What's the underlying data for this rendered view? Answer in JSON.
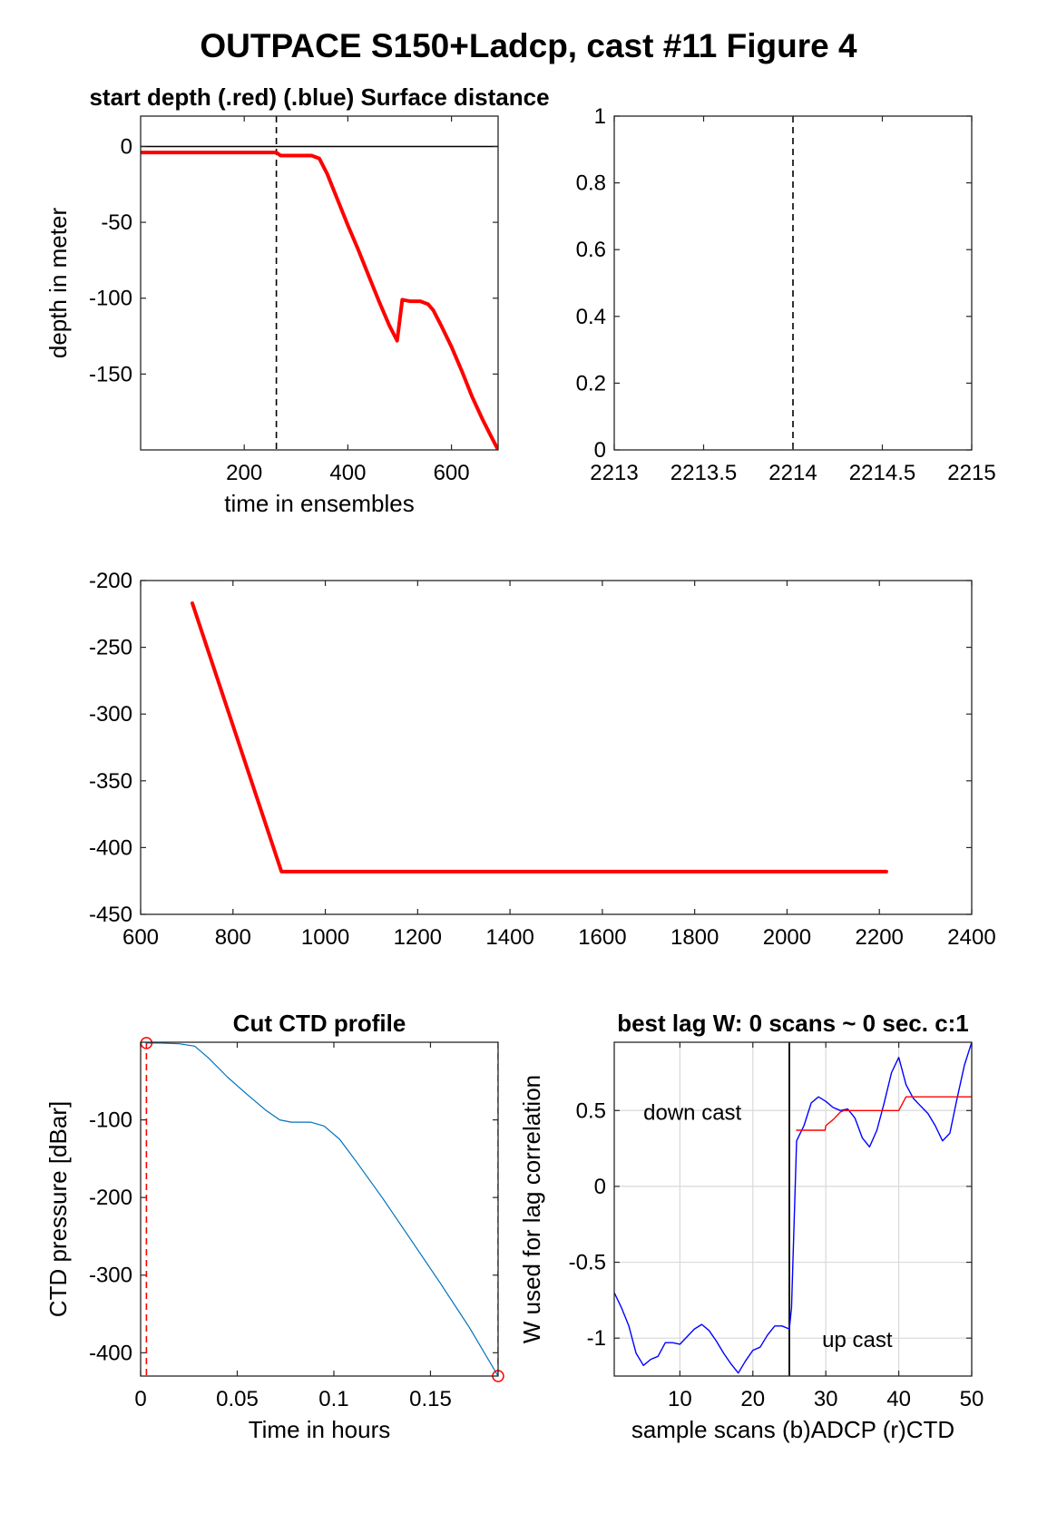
{
  "figure": {
    "title": "OUTPACE S150+Ladcp, cast #11    Figure 4"
  },
  "chart_data": [
    {
      "id": "p1",
      "type": "line",
      "title": "start depth (.red) (.blue) Surface distance",
      "xlabel": "time in ensembles",
      "ylabel": "depth in meter",
      "xlim": [
        0,
        690
      ],
      "ylim": [
        -200,
        20
      ],
      "xticks": [
        200,
        400,
        600
      ],
      "yticks": [
        0,
        -50,
        -100,
        -150
      ],
      "grid": false,
      "hlines": [
        {
          "y": 0,
          "color": "#000000"
        }
      ],
      "vlines": [
        {
          "x": 262,
          "color": "#000000",
          "dashed": true
        }
      ],
      "series": [
        {
          "color": "#ff0000",
          "width": 4,
          "x": [
            0,
            262,
            270,
            300,
            330,
            345,
            360,
            380,
            400,
            420,
            440,
            460,
            480,
            495,
            505,
            520,
            540,
            555,
            565,
            580,
            600,
            620,
            640,
            660,
            675,
            690
          ],
          "y": [
            -4,
            -4,
            -6,
            -6,
            -6,
            -8,
            -18,
            -35,
            -52,
            -68,
            -85,
            -102,
            -118,
            -128,
            -101,
            -102,
            -102,
            -104,
            -108,
            -118,
            -132,
            -148,
            -165,
            -180,
            -190,
            -200
          ]
        }
      ]
    },
    {
      "id": "p2",
      "type": "line",
      "title": "",
      "xlabel": "",
      "ylabel": "",
      "xlim": [
        2213,
        2215
      ],
      "ylim": [
        0,
        1
      ],
      "xticks": [
        "2213",
        "2213.5",
        "2214",
        "2214.5",
        "2215"
      ],
      "yticks": [
        "0",
        "0.2",
        "0.4",
        "0.6",
        "0.8",
        "1"
      ],
      "grid": false,
      "vlines": [
        {
          "x": 2214,
          "color": "#000000",
          "dashed": true
        }
      ],
      "series": []
    },
    {
      "id": "p3",
      "type": "line",
      "title": "",
      "xlabel": "",
      "ylabel": "",
      "xlim": [
        600,
        2400
      ],
      "ylim": [
        -450,
        -200
      ],
      "xticks": [
        600,
        800,
        1000,
        1200,
        1400,
        1600,
        1800,
        2000,
        2200,
        2400
      ],
      "yticks": [
        -200,
        -250,
        -300,
        -350,
        -400,
        -450
      ],
      "grid": false,
      "series": [
        {
          "color": "#ff0000",
          "width": 4,
          "x": [
            712,
            905,
            2215
          ],
          "y": [
            -217,
            -418,
            -418
          ]
        }
      ]
    },
    {
      "id": "p4",
      "type": "line",
      "title": "Cut CTD profile",
      "xlabel": "Time in hours",
      "ylabel": "CTD pressure [dBar]",
      "xlim": [
        0,
        0.185
      ],
      "ylim": [
        -430,
        0
      ],
      "xticks": [
        "0",
        "0.05",
        "0.1",
        "0.15"
      ],
      "yticks": [
        "-100",
        "-200",
        "-300",
        "-400"
      ],
      "grid": false,
      "vlines": [
        {
          "x": 0.003,
          "color": "#ff0000",
          "dashed": true
        },
        {
          "x": 0.185,
          "color": "#ff0000",
          "dashed": true
        }
      ],
      "markers": [
        {
          "x": 0.003,
          "y": -1,
          "color": "#ff0000"
        },
        {
          "x": 0.185,
          "y": -430,
          "color": "#ff0000"
        }
      ],
      "series": [
        {
          "color": "#0072bd",
          "width": 1.2,
          "x": [
            0.003,
            0.01,
            0.02,
            0.028,
            0.035,
            0.045,
            0.055,
            0.065,
            0.072,
            0.078,
            0.088,
            0.095,
            0.103,
            0.112,
            0.125,
            0.14,
            0.155,
            0.17,
            0.185
          ],
          "y": [
            -1,
            -1,
            -2,
            -5,
            -20,
            -45,
            -67,
            -88,
            -100,
            -103,
            -103,
            -108,
            -125,
            -155,
            -200,
            -255,
            -310,
            -367,
            -430
          ]
        }
      ]
    },
    {
      "id": "p5",
      "type": "line",
      "title": "best lag W: 0 scans ~ 0 sec.  c:1",
      "xlabel": "sample scans (b)ADCP (r)CTD",
      "ylabel": "W used for lag correlation",
      "xlim": [
        1,
        50
      ],
      "ylim": [
        -1.25,
        0.95
      ],
      "xticks": [
        10,
        20,
        30,
        40,
        50
      ],
      "yticks": [
        "-1",
        "-0.5",
        "0",
        "0.5"
      ],
      "grid": true,
      "vlines": [
        {
          "x": 25,
          "color": "#000000",
          "dashed": false
        }
      ],
      "annotations": [
        {
          "text": "down cast",
          "x": 5,
          "y": 0.44
        },
        {
          "text": "up cast",
          "x": 29.5,
          "y": -1.06
        }
      ],
      "series": [
        {
          "color": "#0000ff",
          "width": 1.4,
          "x": [
            1,
            2,
            3,
            4,
            5,
            6,
            7,
            8,
            9,
            10,
            11,
            12,
            13,
            14,
            15,
            16,
            17,
            18,
            19,
            20,
            21,
            22,
            23,
            24,
            25,
            25.3,
            26,
            27,
            28,
            29,
            30,
            31,
            32,
            33,
            34,
            35,
            36,
            37,
            38,
            39,
            40,
            41,
            42,
            43,
            44,
            45,
            46,
            47,
            48,
            49,
            50
          ],
          "y": [
            -0.7,
            -0.8,
            -0.92,
            -1.1,
            -1.18,
            -1.14,
            -1.12,
            -1.03,
            -1.03,
            -1.04,
            -0.99,
            -0.94,
            -0.91,
            -0.95,
            -1.02,
            -1.1,
            -1.17,
            -1.23,
            -1.15,
            -1.08,
            -1.06,
            -0.98,
            -0.92,
            -0.92,
            -0.94,
            -0.8,
            0.3,
            0.4,
            0.55,
            0.59,
            0.56,
            0.52,
            0.5,
            0.51,
            0.45,
            0.32,
            0.26,
            0.37,
            0.55,
            0.75,
            0.85,
            0.67,
            0.58,
            0.53,
            0.48,
            0.4,
            0.3,
            0.35,
            0.58,
            0.8,
            0.95
          ]
        },
        {
          "color": "#ff0000",
          "width": 1.4,
          "x": [
            26,
            29.9,
            30,
            31,
            32,
            32.5,
            40,
            41,
            50
          ],
          "y": [
            0.37,
            0.37,
            0.4,
            0.44,
            0.49,
            0.5,
            0.5,
            0.59,
            0.59
          ]
        }
      ]
    }
  ]
}
